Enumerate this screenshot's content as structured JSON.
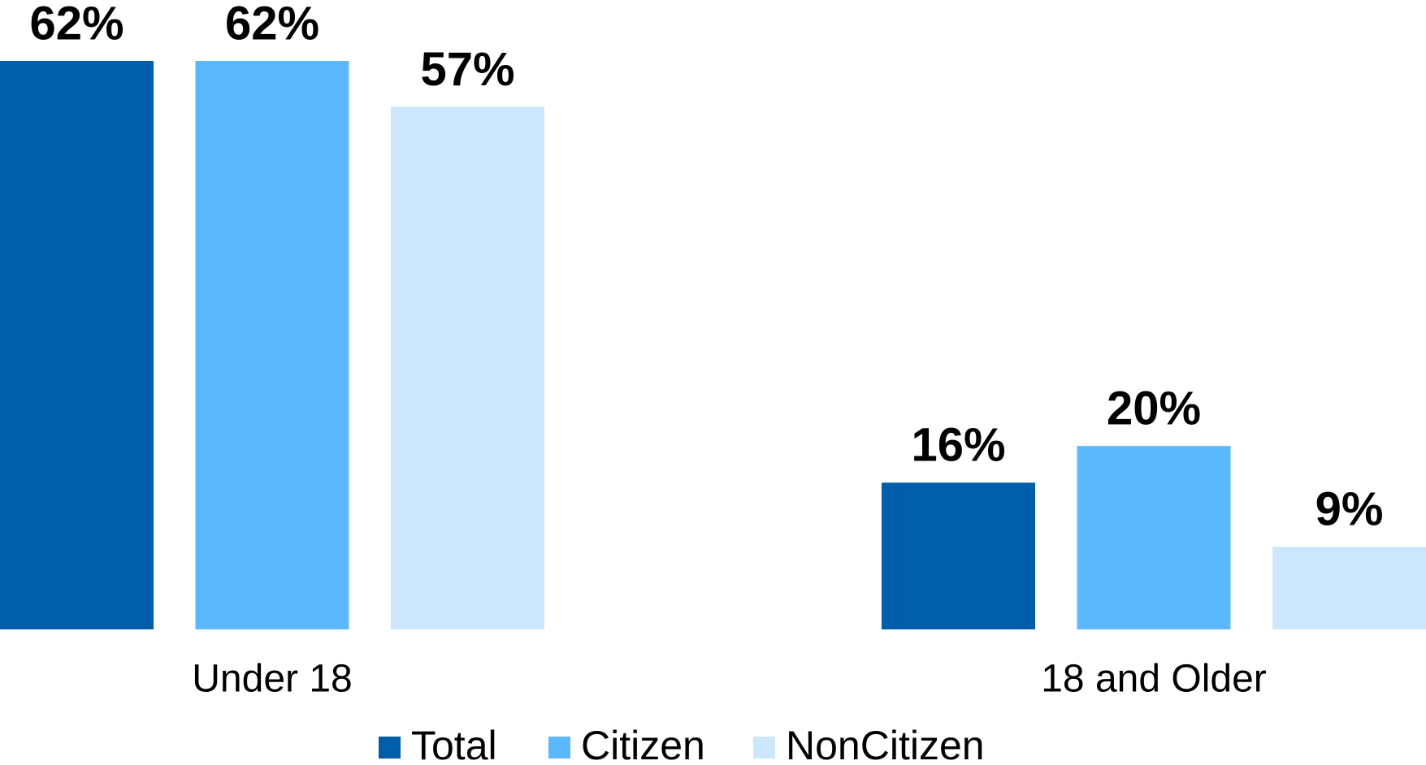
{
  "chart_data": {
    "type": "bar",
    "categories": [
      "Under 18",
      "18 and Older"
    ],
    "series": [
      {
        "name": "Total",
        "color": "#005daa",
        "values": [
          62,
          16
        ],
        "value_labels": [
          "62%",
          "16%"
        ]
      },
      {
        "name": "Citizen",
        "color": "#5cb8fc",
        "values": [
          62,
          20
        ],
        "value_labels": [
          "62%",
          "20%"
        ]
      },
      {
        "name": "NonCitizen",
        "color": "#cce7fc",
        "values": [
          57,
          9
        ],
        "value_labels": [
          "57%",
          "9%"
        ]
      }
    ],
    "legend": "bottom"
  }
}
